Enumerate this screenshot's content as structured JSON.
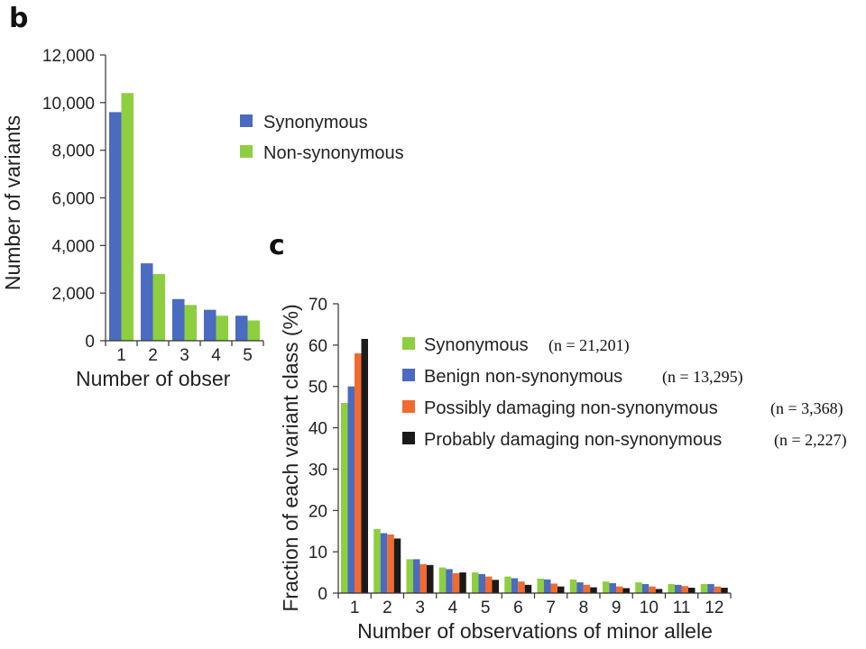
{
  "chart_data": [
    {
      "panel": "b",
      "type": "bar",
      "xlabel": "Number of obser",
      "ylabel": "Number of variants",
      "ylim": [
        0,
        12000
      ],
      "yticks": [
        0,
        2000,
        4000,
        6000,
        8000,
        10000,
        12000
      ],
      "ytick_labels": [
        "0",
        "2,000",
        "4,000",
        "6,000",
        "8,000",
        "10,000",
        "12,000"
      ],
      "categories": [
        "1",
        "2",
        "3",
        "4",
        "5"
      ],
      "series": [
        {
          "name": "Synonymous",
          "color": "#4a6bbf",
          "values": [
            9600,
            3250,
            1750,
            1300,
            1050
          ]
        },
        {
          "name": "Non-synonymous",
          "color": "#8dcf3f",
          "values": [
            10400,
            2800,
            1500,
            1050,
            850
          ]
        }
      ],
      "legend_position": "right"
    },
    {
      "panel": "c",
      "type": "bar",
      "xlabel": "Number of observations of minor allele",
      "ylabel": "Fraction of each variant class (%)",
      "ylim": [
        0,
        70
      ],
      "yticks": [
        0,
        10,
        20,
        30,
        40,
        50,
        60,
        70
      ],
      "ytick_labels": [
        "0",
        "10",
        "20",
        "30",
        "40",
        "50",
        "60",
        "70"
      ],
      "categories": [
        "1",
        "2",
        "3",
        "4",
        "5",
        "6",
        "7",
        "8",
        "9",
        "10",
        "11",
        "12"
      ],
      "series": [
        {
          "name": "Synonymous",
          "n_label": "(n = 21,201)",
          "color": "#8dcf3f",
          "values": [
            46,
            15.5,
            8.2,
            6.2,
            5.0,
            4.0,
            3.5,
            3.3,
            2.8,
            2.6,
            2.2,
            2.2
          ]
        },
        {
          "name": "Benign non-synonymous",
          "n_label": "(n = 13,295)",
          "color": "#4a6bbf",
          "values": [
            50,
            14.5,
            8.2,
            5.8,
            4.6,
            3.6,
            3.3,
            2.6,
            2.4,
            2.2,
            2.0,
            2.2
          ]
        },
        {
          "name": "Possibly damaging non-synonymous",
          "n_label": "(n = 3,368)",
          "color": "#f26a2e",
          "values": [
            58,
            14.2,
            7.0,
            4.8,
            4.0,
            2.8,
            2.3,
            2.0,
            1.6,
            1.6,
            1.7,
            1.6
          ]
        },
        {
          "name": "Probably damaging non-synonymous",
          "n_label": "(n = 2,227)",
          "color": "#1a1a1a",
          "values": [
            61.5,
            13.2,
            6.8,
            5.0,
            3.2,
            2.0,
            1.6,
            1.4,
            1.2,
            1.0,
            1.3,
            1.3
          ]
        }
      ],
      "legend_position": "top-right"
    }
  ]
}
